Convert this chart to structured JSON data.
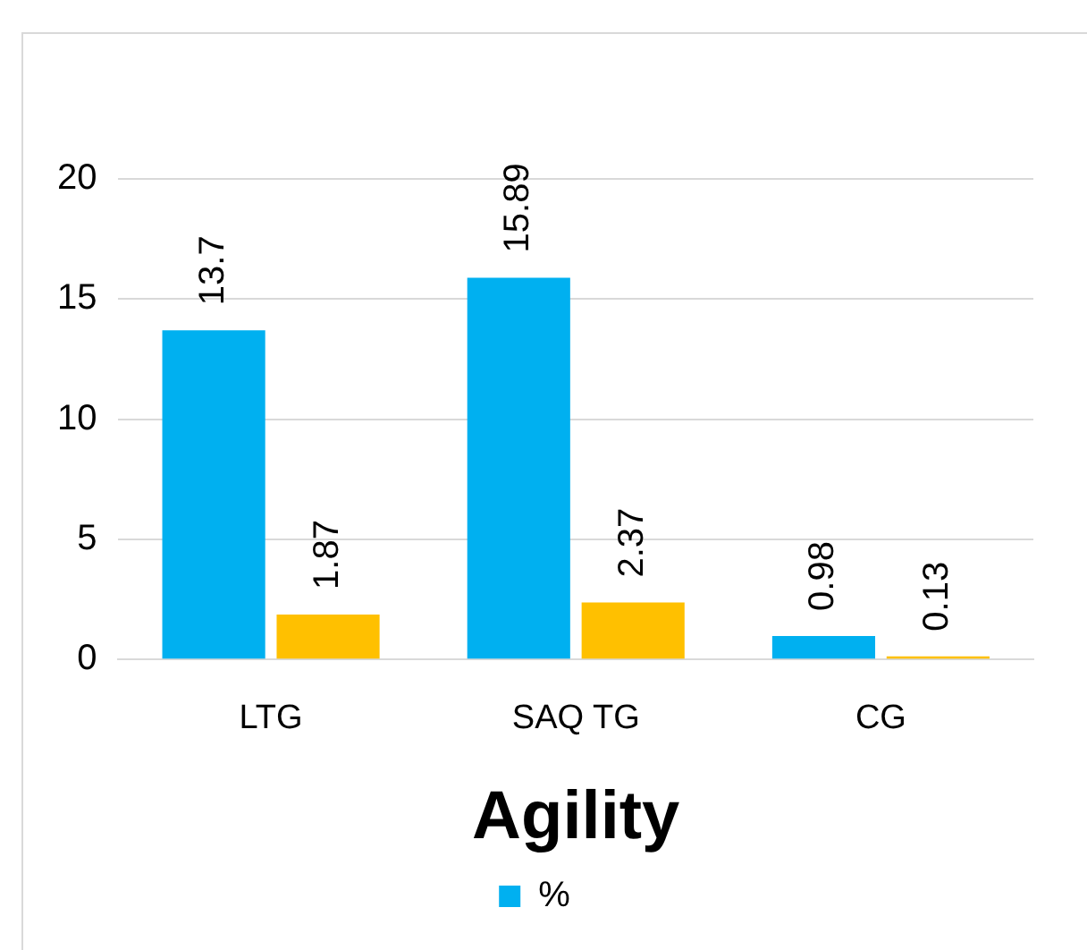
{
  "chart_data": {
    "type": "bar",
    "xlabel": "Agility",
    "categories": [
      "LTG",
      "SAQ TG",
      "CG"
    ],
    "series": [
      {
        "name": "%",
        "color": "#00b0f0",
        "values": [
          13.7,
          15.89,
          0.98
        ]
      },
      {
        "color": "#ffc000",
        "values": [
          1.87,
          2.37,
          0.13
        ]
      }
    ],
    "ylim": [
      0,
      20
    ],
    "yticks": [
      0,
      5,
      10,
      15,
      20
    ],
    "grid": "y",
    "legend": "bottom",
    "data_labels": true
  }
}
